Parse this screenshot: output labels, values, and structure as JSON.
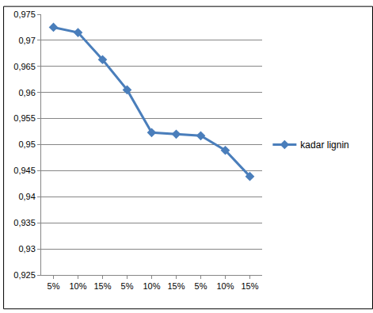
{
  "chart_data": {
    "type": "line",
    "categories": [
      "5%",
      "10%",
      "15%",
      "5%",
      "10%",
      "15%",
      "5%",
      "10%",
      "15%"
    ],
    "series": [
      {
        "name": "kadar lignin",
        "color": "#4a7ebb",
        "marker": "diamond",
        "values": [
          0.9725,
          0.9715,
          0.9663,
          0.9605,
          0.9523,
          0.952,
          0.9517,
          0.9489,
          0.9439
        ]
      }
    ],
    "ylim": [
      0.925,
      0.975
    ],
    "yticks": [
      {
        "value": 0.925,
        "label": "0,925"
      },
      {
        "value": 0.93,
        "label": "0,93"
      },
      {
        "value": 0.935,
        "label": "0,935"
      },
      {
        "value": 0.94,
        "label": "0,94"
      },
      {
        "value": 0.945,
        "label": "0,945"
      },
      {
        "value": 0.95,
        "label": "0,95"
      },
      {
        "value": 0.955,
        "label": "0,955"
      },
      {
        "value": 0.96,
        "label": "0,96"
      },
      {
        "value": 0.965,
        "label": "0,965"
      },
      {
        "value": 0.97,
        "label": "0,97"
      },
      {
        "value": 0.975,
        "label": "0,975"
      }
    ],
    "grid": true,
    "legend": "right"
  }
}
